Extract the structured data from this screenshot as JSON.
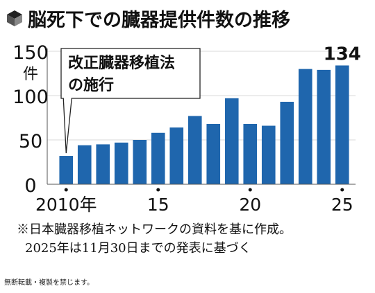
{
  "title": "脳死下での臓器提供件数の推移",
  "title_icon": "cube-icon",
  "colors": {
    "bar": "#1f66ad",
    "text": "#111111",
    "grid": "#d9d9d9"
  },
  "chart_data": {
    "type": "bar",
    "categories": [
      "2010",
      "2011",
      "2012",
      "2013",
      "2014",
      "2015",
      "2016",
      "2017",
      "2018",
      "2019",
      "2020",
      "2021",
      "2022",
      "2023",
      "2024",
      "2025"
    ],
    "values": [
      32,
      44,
      45,
      47,
      50,
      58,
      64,
      77,
      68,
      97,
      68,
      66,
      93,
      130,
      129,
      134
    ],
    "ylim": [
      0,
      150
    ],
    "yticks": [
      "0",
      "50",
      "100",
      "150"
    ],
    "y_unit": "件",
    "xticks": [
      {
        "category": "2010",
        "label": "2010年"
      },
      {
        "category": "2015",
        "label": "15"
      },
      {
        "category": "2020",
        "label": "20"
      },
      {
        "category": "2025",
        "label": "25"
      }
    ],
    "value_labels": [
      {
        "category": "2025",
        "label": "134"
      }
    ],
    "annotation": {
      "category": "2010",
      "lines": [
        "改正臓器移植法",
        "の施行"
      ]
    },
    "grid": true
  },
  "notes": [
    "※日本臓器移植ネットワークの資料を基に作成。",
    "2025年は11月30日までの発表に基づく"
  ],
  "copyright": "無断転載・複製を禁じます。"
}
